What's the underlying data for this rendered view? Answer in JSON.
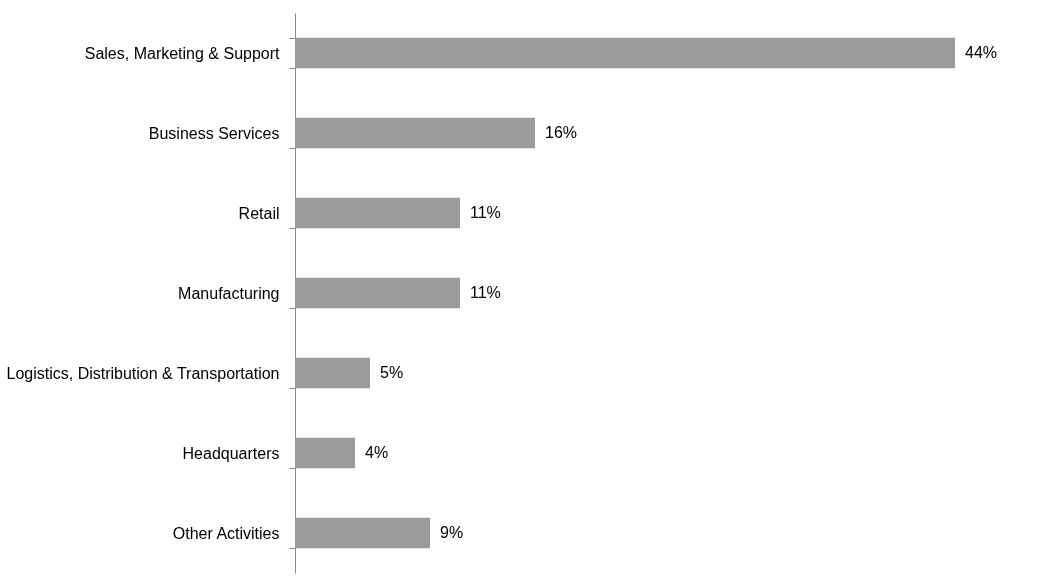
{
  "chart_data": {
    "type": "bar",
    "orientation": "horizontal",
    "categories": [
      "Sales, Marketing & Support",
      "Business Services",
      "Retail",
      "Manufacturing",
      "Logistics, Distribution & Transportation",
      "Headquarters",
      "Other Activities"
    ],
    "values": [
      44,
      16,
      11,
      11,
      5,
      4,
      9
    ],
    "value_labels": [
      "44%",
      "16%",
      "11%",
      "11%",
      "5%",
      "4%",
      "9%"
    ],
    "color": "#9b9b9b",
    "grid": false
  }
}
